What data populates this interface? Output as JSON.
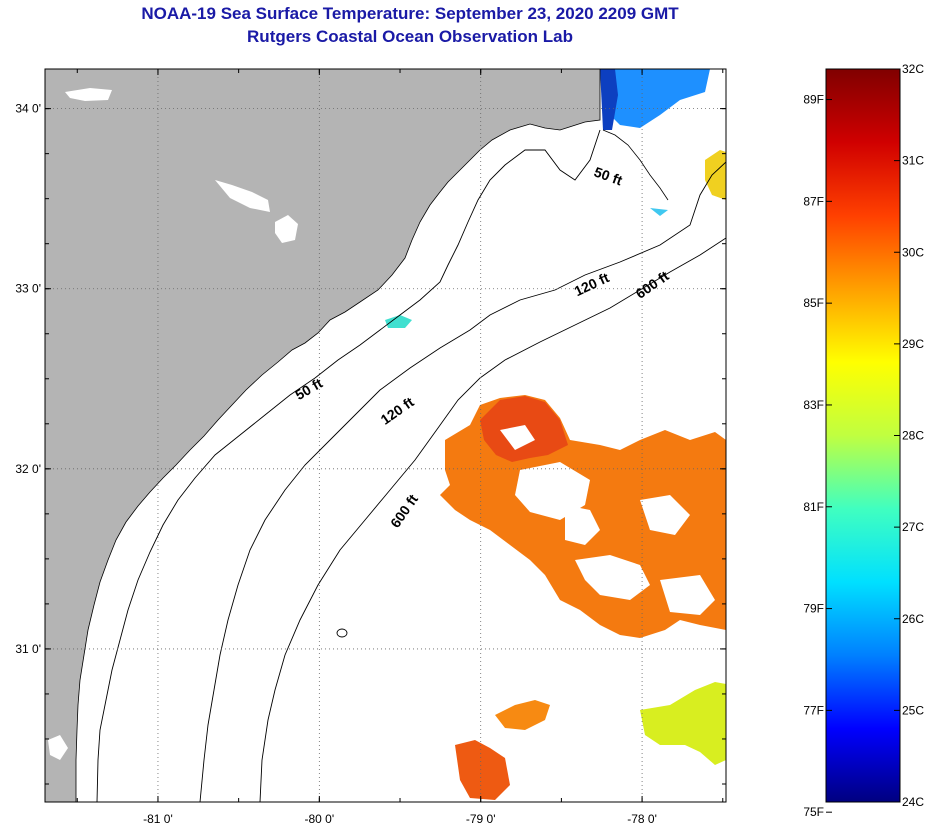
{
  "header": {
    "title": "NOAA-19 Sea Surface Temperature:  September 23, 2020 2209 GMT",
    "subtitle": "Rutgers Coastal Ocean Observation Lab"
  },
  "map": {
    "lon_range": [
      -81.7,
      -77.48
    ],
    "lat_range": [
      30.15,
      34.22
    ],
    "lon_ticks": [
      {
        "v": -81,
        "label": "-81 0'"
      },
      {
        "v": -80,
        "label": "-80 0'"
      },
      {
        "v": -79,
        "label": "-79 0'"
      },
      {
        "v": -78,
        "label": "-78 0'"
      }
    ],
    "lat_ticks": [
      {
        "v": 34,
        "label": "34 0'"
      },
      {
        "v": 33,
        "label": "33 0'"
      },
      {
        "v": 32,
        "label": "32 0'"
      },
      {
        "v": 31,
        "label": "31 0'"
      }
    ],
    "land_color": "#b4b4b4",
    "contours": [
      {
        "label": "50 ft",
        "lon": -78.22,
        "lat": 33.6,
        "angle": 20
      },
      {
        "label": "50 ft",
        "lon": -80.05,
        "lat": 32.42,
        "angle": -30
      },
      {
        "label": "120 ft",
        "lon": -78.3,
        "lat": 33.0,
        "angle": -25
      },
      {
        "label": "120 ft",
        "lon": -79.5,
        "lat": 32.3,
        "angle": -35
      },
      {
        "label": "600 ft",
        "lon": -77.92,
        "lat": 33.0,
        "angle": -35
      },
      {
        "label": "600 ft",
        "lon": -79.45,
        "lat": 31.75,
        "angle": -55
      }
    ]
  },
  "colorbar": {
    "fahrenheit": [
      {
        "v": 89,
        "label": "89F"
      },
      {
        "v": 87,
        "label": "87F"
      },
      {
        "v": 85,
        "label": "85F"
      },
      {
        "v": 83,
        "label": "83F"
      },
      {
        "v": 81,
        "label": "81F"
      },
      {
        "v": 79,
        "label": "79F"
      },
      {
        "v": 77,
        "label": "77F"
      },
      {
        "v": 75,
        "label": "75F"
      }
    ],
    "celsius": [
      {
        "v": 32,
        "label": "32C"
      },
      {
        "v": 31,
        "label": "31C"
      },
      {
        "v": 30,
        "label": "30C"
      },
      {
        "v": 29,
        "label": "29C"
      },
      {
        "v": 28,
        "label": "28C"
      },
      {
        "v": 27,
        "label": "27C"
      },
      {
        "v": 26,
        "label": "26C"
      },
      {
        "v": 25,
        "label": "25C"
      },
      {
        "v": 24,
        "label": "24C"
      }
    ],
    "range_c": [
      24,
      32
    ],
    "colors": [
      "#000080",
      "#0000ff",
      "#0080ff",
      "#00e0ff",
      "#40ffc0",
      "#c0ff40",
      "#ffff00",
      "#ffa000",
      "#ff4000",
      "#d00000",
      "#800000"
    ]
  }
}
